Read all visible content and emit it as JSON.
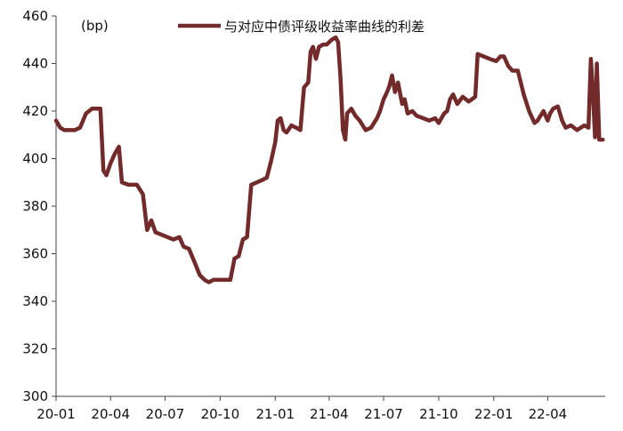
{
  "chart_data": {
    "type": "line",
    "unit_label": "(bp)",
    "ylim": [
      300,
      460
    ],
    "y_ticks": [
      300,
      320,
      340,
      360,
      380,
      400,
      420,
      440,
      460
    ],
    "xlim": [
      "2020-01-01",
      "2022-07-06"
    ],
    "x_ticks": [
      {
        "label": "20-01",
        "date": "2020-01-01"
      },
      {
        "label": "20-04",
        "date": "2020-04-01"
      },
      {
        "label": "20-07",
        "date": "2020-07-01"
      },
      {
        "label": "20-10",
        "date": "2020-10-01"
      },
      {
        "label": "21-01",
        "date": "2021-01-01"
      },
      {
        "label": "21-04",
        "date": "2021-04-01"
      },
      {
        "label": "21-07",
        "date": "2021-07-01"
      },
      {
        "label": "21-10",
        "date": "2021-10-01"
      },
      {
        "label": "22-01",
        "date": "2022-01-01"
      },
      {
        "label": "22-04",
        "date": "2022-04-01"
      }
    ],
    "grid": false,
    "legend_position": "top-center",
    "series": [
      {
        "name": "与对应中债评级收益率曲线的利差",
        "color": "#722a2a",
        "points": [
          [
            "2020-01-01",
            416
          ],
          [
            "2020-01-08",
            413
          ],
          [
            "2020-01-15",
            412
          ],
          [
            "2020-01-22",
            412
          ],
          [
            "2020-02-01",
            412
          ],
          [
            "2020-02-10",
            413
          ],
          [
            "2020-02-20",
            419
          ],
          [
            "2020-03-01",
            421
          ],
          [
            "2020-03-15",
            421
          ],
          [
            "2020-03-20",
            395
          ],
          [
            "2020-03-25",
            393
          ],
          [
            "2020-04-01",
            398
          ],
          [
            "2020-04-08",
            402
          ],
          [
            "2020-04-15",
            405
          ],
          [
            "2020-04-20",
            390
          ],
          [
            "2020-05-01",
            389
          ],
          [
            "2020-05-15",
            389
          ],
          [
            "2020-05-25",
            385
          ],
          [
            "2020-06-01",
            370
          ],
          [
            "2020-06-08",
            374
          ],
          [
            "2020-06-15",
            369
          ],
          [
            "2020-06-25",
            368
          ],
          [
            "2020-07-05",
            367
          ],
          [
            "2020-07-15",
            366
          ],
          [
            "2020-07-25",
            367
          ],
          [
            "2020-08-01",
            363
          ],
          [
            "2020-08-10",
            362
          ],
          [
            "2020-08-20",
            356
          ],
          [
            "2020-08-28",
            351
          ],
          [
            "2020-09-05",
            349
          ],
          [
            "2020-09-12",
            348
          ],
          [
            "2020-09-20",
            349
          ],
          [
            "2020-10-01",
            349
          ],
          [
            "2020-10-10",
            349
          ],
          [
            "2020-10-18",
            349
          ],
          [
            "2020-10-25",
            358
          ],
          [
            "2020-11-01",
            359
          ],
          [
            "2020-11-08",
            366
          ],
          [
            "2020-11-15",
            367
          ],
          [
            "2020-11-22",
            389
          ],
          [
            "2020-12-01",
            390
          ],
          [
            "2020-12-10",
            391
          ],
          [
            "2020-12-18",
            392
          ],
          [
            "2020-12-25",
            399
          ],
          [
            "2021-01-01",
            407
          ],
          [
            "2021-01-05",
            416
          ],
          [
            "2021-01-10",
            417
          ],
          [
            "2021-01-15",
            412
          ],
          [
            "2021-01-20",
            411
          ],
          [
            "2021-01-28",
            414
          ],
          [
            "2021-02-05",
            413
          ],
          [
            "2021-02-12",
            412
          ],
          [
            "2021-02-18",
            430
          ],
          [
            "2021-02-25",
            432
          ],
          [
            "2021-03-01",
            445
          ],
          [
            "2021-03-05",
            447
          ],
          [
            "2021-03-10",
            442
          ],
          [
            "2021-03-15",
            447
          ],
          [
            "2021-03-22",
            448
          ],
          [
            "2021-03-28",
            448
          ],
          [
            "2021-04-05",
            450
          ],
          [
            "2021-04-12",
            451
          ],
          [
            "2021-04-16",
            449
          ],
          [
            "2021-04-20",
            434
          ],
          [
            "2021-04-24",
            412
          ],
          [
            "2021-04-28",
            408
          ],
          [
            "2021-05-01",
            419
          ],
          [
            "2021-05-08",
            421
          ],
          [
            "2021-05-15",
            418
          ],
          [
            "2021-05-22",
            416
          ],
          [
            "2021-06-01",
            412
          ],
          [
            "2021-06-10",
            413
          ],
          [
            "2021-06-20",
            417
          ],
          [
            "2021-06-25",
            420
          ],
          [
            "2021-07-01",
            425
          ],
          [
            "2021-07-05",
            427
          ],
          [
            "2021-07-10",
            430
          ],
          [
            "2021-07-15",
            435
          ],
          [
            "2021-07-20",
            428
          ],
          [
            "2021-07-25",
            432
          ],
          [
            "2021-08-01",
            423
          ],
          [
            "2021-08-05",
            425
          ],
          [
            "2021-08-10",
            419
          ],
          [
            "2021-08-18",
            420
          ],
          [
            "2021-08-25",
            418
          ],
          [
            "2021-09-05",
            417
          ],
          [
            "2021-09-15",
            416
          ],
          [
            "2021-09-25",
            417
          ],
          [
            "2021-10-01",
            415
          ],
          [
            "2021-10-10",
            419
          ],
          [
            "2021-10-15",
            420
          ],
          [
            "2021-10-20",
            425
          ],
          [
            "2021-10-25",
            427
          ],
          [
            "2021-11-01",
            423
          ],
          [
            "2021-11-10",
            426
          ],
          [
            "2021-11-20",
            424
          ],
          [
            "2021-12-01",
            426
          ],
          [
            "2021-12-05",
            444
          ],
          [
            "2021-12-15",
            443
          ],
          [
            "2021-12-25",
            442
          ],
          [
            "2022-01-05",
            441
          ],
          [
            "2022-01-12",
            443
          ],
          [
            "2022-01-18",
            443
          ],
          [
            "2022-01-25",
            439
          ],
          [
            "2022-02-01",
            437
          ],
          [
            "2022-02-10",
            437
          ],
          [
            "2022-02-20",
            427
          ],
          [
            "2022-03-01",
            420
          ],
          [
            "2022-03-10",
            415
          ],
          [
            "2022-03-15",
            416
          ],
          [
            "2022-03-20",
            418
          ],
          [
            "2022-03-25",
            420
          ],
          [
            "2022-04-01",
            416
          ],
          [
            "2022-04-05",
            419
          ],
          [
            "2022-04-10",
            421
          ],
          [
            "2022-04-18",
            422
          ],
          [
            "2022-04-25",
            416
          ],
          [
            "2022-05-01",
            413
          ],
          [
            "2022-05-10",
            414
          ],
          [
            "2022-05-20",
            412
          ],
          [
            "2022-06-01",
            414
          ],
          [
            "2022-06-08",
            413
          ],
          [
            "2022-06-12",
            442
          ],
          [
            "2022-06-15",
            430
          ],
          [
            "2022-06-19",
            409
          ],
          [
            "2022-06-22",
            440
          ],
          [
            "2022-06-26",
            408
          ],
          [
            "2022-07-02",
            408
          ]
        ]
      }
    ]
  }
}
